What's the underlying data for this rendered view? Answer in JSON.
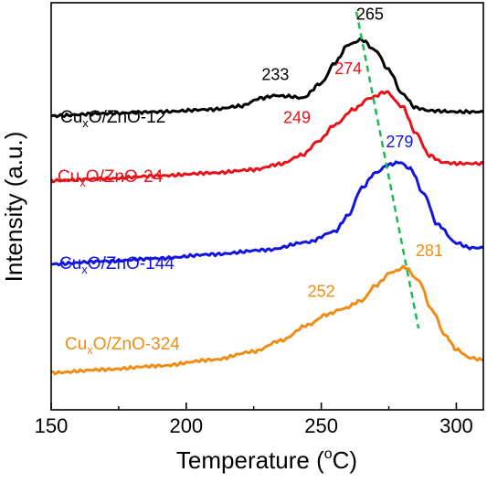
{
  "chart_data": {
    "type": "line",
    "xlabel": "Temperature (°C)",
    "xlabel_parts": {
      "prefix": "Temperature (",
      "sup": "o",
      "suffix": "C)"
    },
    "ylabel": "Intensity (a.u.)",
    "xlim": [
      150,
      310
    ],
    "ylim": [
      0,
      1
    ],
    "xticks": [
      150,
      200,
      250,
      300
    ],
    "y_ticks_shown": false,
    "grid": false,
    "legend": "none",
    "series": [
      {
        "name": "CuxO/ZnO-12",
        "label_parts": {
          "base": "Cu",
          "sub": "x",
          "rest": "O/ZnO-12"
        },
        "color": "#000000",
        "x": [
          150,
          170,
          190,
          210,
          220,
          228,
          233,
          238,
          243,
          250,
          255,
          260,
          265,
          270,
          275,
          280,
          285,
          290,
          300,
          310
        ],
        "y": [
          0.722,
          0.728,
          0.732,
          0.738,
          0.746,
          0.766,
          0.772,
          0.77,
          0.766,
          0.802,
          0.852,
          0.897,
          0.909,
          0.883,
          0.835,
          0.776,
          0.742,
          0.735,
          0.732,
          0.732
        ]
      },
      {
        "name": "CuxO/ZnO-24",
        "label_parts": {
          "base": "Cu",
          "sub": "x",
          "rest": "O/ZnO-24"
        },
        "color": "#e8121a",
        "x": [
          150,
          170,
          190,
          210,
          225,
          235,
          243,
          249,
          255,
          262,
          268,
          274,
          280,
          285,
          290,
          295,
          300,
          310
        ],
        "y": [
          0.563,
          0.568,
          0.575,
          0.582,
          0.59,
          0.604,
          0.626,
          0.66,
          0.7,
          0.738,
          0.766,
          0.781,
          0.745,
          0.68,
          0.625,
          0.608,
          0.605,
          0.605
        ]
      },
      {
        "name": "CuxO/ZnO-144",
        "label_parts": {
          "base": "Cu",
          "sub": "x",
          "rest": "O/ZnO-144"
        },
        "color": "#1414e0",
        "x": [
          150,
          170,
          190,
          210,
          230,
          245,
          255,
          260,
          265,
          270,
          275,
          279,
          283,
          288,
          293,
          300,
          305,
          310
        ],
        "y": [
          0.358,
          0.365,
          0.372,
          0.382,
          0.393,
          0.412,
          0.438,
          0.478,
          0.545,
          0.582,
          0.602,
          0.608,
          0.592,
          0.53,
          0.455,
          0.41,
          0.398,
          0.398
        ]
      },
      {
        "name": "CuxO/ZnO-324",
        "label_parts": {
          "base": "Cu",
          "sub": "x",
          "rest": "O/ZnO-324"
        },
        "color": "#f08c14",
        "x": [
          150,
          170,
          190,
          210,
          225,
          235,
          245,
          252,
          258,
          265,
          270,
          276,
          281,
          286,
          291,
          296,
          300,
          305,
          310
        ],
        "y": [
          0.091,
          0.099,
          0.108,
          0.123,
          0.143,
          0.17,
          0.208,
          0.234,
          0.248,
          0.268,
          0.305,
          0.338,
          0.35,
          0.318,
          0.245,
          0.182,
          0.148,
          0.128,
          0.122
        ]
      }
    ],
    "annotations": [
      {
        "text": "265",
        "color": "#000000",
        "x": 268,
        "y": 0.958
      },
      {
        "text": "233",
        "color": "#000000",
        "x": 233,
        "y": 0.81
      },
      {
        "text": "274",
        "color": "#e8121a",
        "x": 260,
        "y": 0.825
      },
      {
        "text": "249",
        "color": "#e8121a",
        "x": 241,
        "y": 0.705
      },
      {
        "text": "279",
        "color": "#1414e0",
        "x": 279,
        "y": 0.645
      },
      {
        "text": "281",
        "color": "#f08c14",
        "x": 290,
        "y": 0.377
      },
      {
        "text": "252",
        "color": "#f08c14",
        "x": 250,
        "y": 0.278
      }
    ],
    "peak_trend_line": {
      "color": "#1db954",
      "style": "dashed",
      "x": [
        263,
        286
      ],
      "y": [
        0.978,
        0.2
      ]
    }
  }
}
